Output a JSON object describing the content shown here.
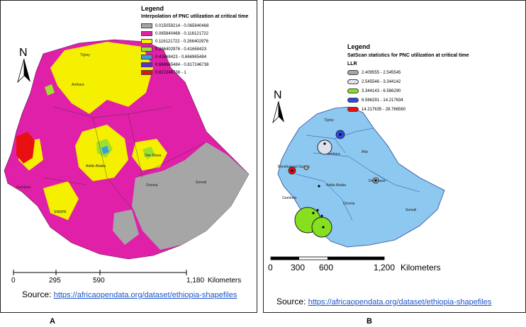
{
  "panel_a": {
    "legend_title": "Legend",
    "legend_subtitle": "Interpolation of PNC utilization at critical time",
    "legend_items": [
      {
        "label": "0.015059214 - 0.065840468",
        "color": "#a6a6a6"
      },
      {
        "label": "0.065840468 - 0.116121722",
        "color": "#e020a8"
      },
      {
        "label": "0.116121722 - 0.266402976",
        "color": "#f4f000"
      },
      {
        "label": "0.266402976 - 0.41668423",
        "color": "#9ee030"
      },
      {
        "label": "0.41668423 - 0.666965484",
        "color": "#3a9de0"
      },
      {
        "label": "0.666965484 - 0.817246738",
        "color": "#5a2de0"
      },
      {
        "label": "0.817246738 - 1",
        "color": "#e81010"
      }
    ],
    "north": "N",
    "region_labels": [
      "Tigray",
      "Amhara",
      "Addis Ababa",
      "Dire Dawa",
      "Oromia",
      "Somali",
      "Gambela",
      "SNNPR"
    ],
    "scale_ticks": [
      "0",
      "295",
      "590",
      "1,180"
    ],
    "scale_unit": "Kilometers",
    "source_label": "Source:",
    "source_url": "https://africaopendata.org/dataset/ethiopia-shapefiles",
    "panel_letter": "A"
  },
  "panel_b": {
    "legend_title": "Legend",
    "legend_subtitle": "SatScan statistics for PNC utilization at critical time",
    "legend_field": "LLR",
    "legend_items": [
      {
        "label": "2.409555 - 2.545545",
        "color": "#a6a6a6"
      },
      {
        "label": "2.545546 - 3.344142",
        "color": "#dde3ee"
      },
      {
        "label": "3.344143 - 6.566290",
        "color": "#86e020"
      },
      {
        "label": "6.566291 - 14.217634",
        "color": "#2848e8"
      },
      {
        "label": "14.217635 - 28.766560",
        "color": "#e81010"
      }
    ],
    "north": "N",
    "region_labels": [
      "Tigray",
      "Amhara",
      "Afar",
      "Benishangul Gumuz",
      "Addis Ababa",
      "Dire Dawa",
      "Oromia",
      "Somali",
      "Gambela"
    ],
    "scale_ticks": [
      "0",
      "300",
      "600",
      "1,200"
    ],
    "scale_unit": "Kilometers",
    "source_label": "Source:",
    "source_url": "https://africaopendata.org/dataset/ethiopia-shapefiles",
    "panel_letter": "B"
  },
  "colors": {
    "country_b": "#8cc8f0",
    "border": "#2a4a9a",
    "link": "#1a54c8"
  }
}
